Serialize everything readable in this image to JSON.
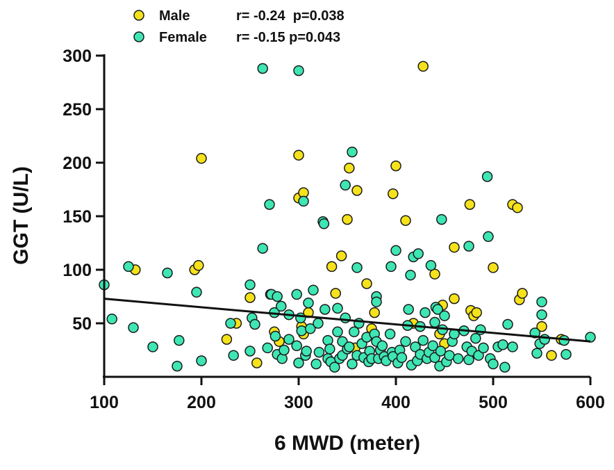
{
  "chart_data": {
    "type": "scatter",
    "xlabel": "6 MWD (meter)",
    "ylabel": "GGT (U/L)",
    "xlim": [
      100,
      600
    ],
    "ylim": [
      0,
      300
    ],
    "xticks": [
      "100",
      "200",
      "300",
      "400",
      "500",
      "600"
    ],
    "yticks": [
      "50",
      "100",
      "150",
      "200",
      "250",
      "300"
    ],
    "legend_position": "top-left",
    "colors": {
      "Male": "#f5e21b",
      "Female": "#3ee6b4",
      "outline": "#1a1a1a",
      "trend": "#111111"
    },
    "series": [
      {
        "name": "Male",
        "stats": "r= -0.24  p=0.038",
        "points": [
          [
            132,
            100
          ],
          [
            193,
            100
          ],
          [
            197,
            104
          ],
          [
            200,
            204
          ],
          [
            226,
            35
          ],
          [
            236,
            50
          ],
          [
            250,
            74
          ],
          [
            257,
            13
          ],
          [
            271,
            77
          ],
          [
            275,
            42
          ],
          [
            280,
            33
          ],
          [
            300,
            207
          ],
          [
            300,
            167
          ],
          [
            303,
            47
          ],
          [
            305,
            172
          ],
          [
            305,
            40
          ],
          [
            310,
            60
          ],
          [
            334,
            103
          ],
          [
            338,
            78
          ],
          [
            344,
            113
          ],
          [
            350,
            147
          ],
          [
            352,
            195
          ],
          [
            358,
            27
          ],
          [
            360,
            174
          ],
          [
            370,
            87
          ],
          [
            375,
            45
          ],
          [
            378,
            60
          ],
          [
            397,
            171
          ],
          [
            400,
            197
          ],
          [
            410,
            146
          ],
          [
            418,
            50
          ],
          [
            428,
            290
          ],
          [
            440,
            96
          ],
          [
            445,
            40
          ],
          [
            448,
            67
          ],
          [
            450,
            31
          ],
          [
            460,
            121
          ],
          [
            460,
            73
          ],
          [
            476,
            161
          ],
          [
            477,
            62
          ],
          [
            480,
            57
          ],
          [
            483,
            60
          ],
          [
            500,
            102
          ],
          [
            520,
            161
          ],
          [
            525,
            158
          ],
          [
            527,
            72
          ],
          [
            530,
            78
          ],
          [
            550,
            47
          ],
          [
            560,
            20
          ],
          [
            570,
            35
          ]
        ]
      },
      {
        "name": "Female",
        "stats": "r= -0.15 p=0.043",
        "points": [
          [
            100,
            86
          ],
          [
            108,
            54
          ],
          [
            125,
            103
          ],
          [
            130,
            46
          ],
          [
            150,
            28
          ],
          [
            165,
            97
          ],
          [
            175,
            10
          ],
          [
            177,
            34
          ],
          [
            195,
            79
          ],
          [
            200,
            15
          ],
          [
            230,
            50
          ],
          [
            233,
            20
          ],
          [
            250,
            86
          ],
          [
            250,
            24
          ],
          [
            252,
            55
          ],
          [
            255,
            49
          ],
          [
            263,
            288
          ],
          [
            263,
            120
          ],
          [
            268,
            27
          ],
          [
            270,
            161
          ],
          [
            272,
            77
          ],
          [
            275,
            60
          ],
          [
            276,
            38
          ],
          [
            278,
            75
          ],
          [
            278,
            21
          ],
          [
            282,
            66
          ],
          [
            283,
            17
          ],
          [
            285,
            25
          ],
          [
            290,
            58
          ],
          [
            290,
            35
          ],
          [
            298,
            29
          ],
          [
            298,
            77
          ],
          [
            300,
            286
          ],
          [
            300,
            13
          ],
          [
            302,
            55
          ],
          [
            303,
            43
          ],
          [
            305,
            164
          ],
          [
            307,
            20
          ],
          [
            308,
            24
          ],
          [
            310,
            69
          ],
          [
            312,
            45
          ],
          [
            315,
            81
          ],
          [
            318,
            12
          ],
          [
            320,
            50
          ],
          [
            321,
            23
          ],
          [
            325,
            145
          ],
          [
            326,
            143
          ],
          [
            327,
            63
          ],
          [
            330,
            17
          ],
          [
            330,
            34
          ],
          [
            332,
            26
          ],
          [
            333,
            14
          ],
          [
            337,
            9
          ],
          [
            340,
            42
          ],
          [
            340,
            64
          ],
          [
            342,
            17
          ],
          [
            345,
            20
          ],
          [
            345,
            33
          ],
          [
            348,
            55
          ],
          [
            348,
            179
          ],
          [
            350,
            26
          ],
          [
            352,
            28
          ],
          [
            355,
            12
          ],
          [
            355,
            210
          ],
          [
            357,
            42
          ],
          [
            360,
            102
          ],
          [
            360,
            20
          ],
          [
            362,
            50
          ],
          [
            365,
            31
          ],
          [
            367,
            18
          ],
          [
            370,
            37
          ],
          [
            372,
            14
          ],
          [
            373,
            24
          ],
          [
            375,
            17
          ],
          [
            378,
            40
          ],
          [
            380,
            33
          ],
          [
            380,
            75
          ],
          [
            380,
            70
          ],
          [
            382,
            17
          ],
          [
            384,
            25
          ],
          [
            386,
            29
          ],
          [
            388,
            19
          ],
          [
            390,
            15
          ],
          [
            394,
            40
          ],
          [
            395,
            103
          ],
          [
            396,
            23
          ],
          [
            397,
            19
          ],
          [
            400,
            118
          ],
          [
            402,
            13
          ],
          [
            404,
            25
          ],
          [
            406,
            18
          ],
          [
            410,
            33
          ],
          [
            412,
            48
          ],
          [
            413,
            63
          ],
          [
            415,
            95
          ],
          [
            416,
            11
          ],
          [
            418,
            112
          ],
          [
            420,
            28
          ],
          [
            422,
            15
          ],
          [
            423,
            115
          ],
          [
            425,
            47
          ],
          [
            425,
            21
          ],
          [
            428,
            34
          ],
          [
            430,
            60
          ],
          [
            432,
            17
          ],
          [
            434,
            23
          ],
          [
            436,
            104
          ],
          [
            438,
            29
          ],
          [
            440,
            51
          ],
          [
            440,
            18
          ],
          [
            441,
            65
          ],
          [
            443,
            63
          ],
          [
            445,
            10
          ],
          [
            446,
            24
          ],
          [
            447,
            147
          ],
          [
            448,
            44
          ],
          [
            450,
            57
          ],
          [
            452,
            14
          ],
          [
            455,
            20
          ],
          [
            458,
            33
          ],
          [
            460,
            40
          ],
          [
            464,
            17
          ],
          [
            470,
            43
          ],
          [
            473,
            28
          ],
          [
            475,
            122
          ],
          [
            475,
            16
          ],
          [
            478,
            24
          ],
          [
            482,
            36
          ],
          [
            485,
            20
          ],
          [
            487,
            44
          ],
          [
            490,
            27
          ],
          [
            494,
            187
          ],
          [
            495,
            131
          ],
          [
            497,
            17
          ],
          [
            500,
            12
          ],
          [
            505,
            28
          ],
          [
            510,
            30
          ],
          [
            512,
            9
          ],
          [
            515,
            49
          ],
          [
            520,
            28
          ],
          [
            543,
            41
          ],
          [
            545,
            22
          ],
          [
            548,
            31
          ],
          [
            550,
            70
          ],
          [
            550,
            58
          ],
          [
            553,
            35
          ],
          [
            573,
            34
          ],
          [
            575,
            21
          ],
          [
            600,
            37
          ]
        ]
      }
    ],
    "trendline": {
      "x": [
        100,
        600
      ],
      "y": [
        73,
        33
      ]
    }
  }
}
